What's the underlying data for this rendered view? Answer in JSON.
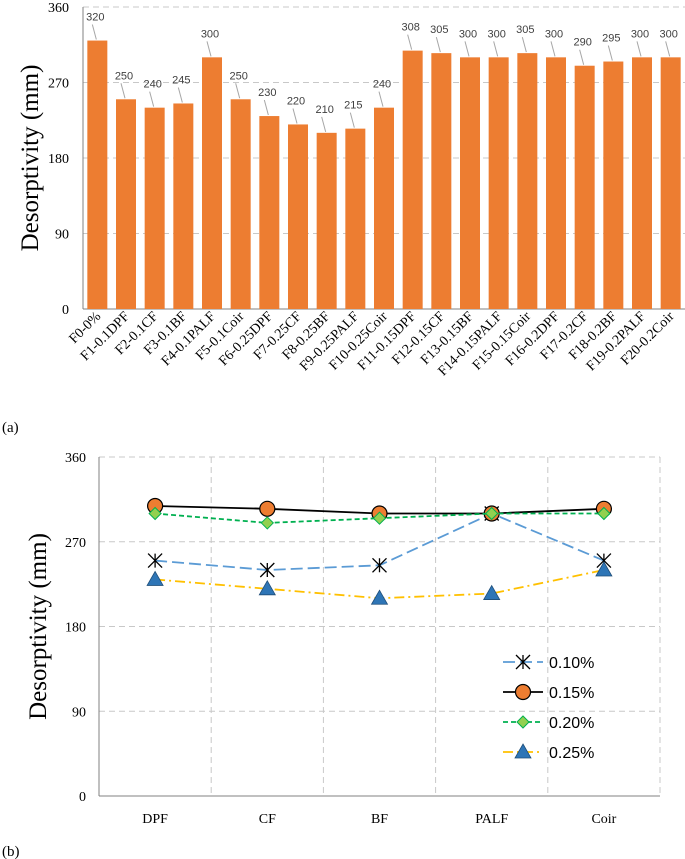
{
  "chart_data": [
    {
      "panel": "(a)",
      "type": "bar",
      "ylabel": "Desorptivity (mm)",
      "ylim": [
        0,
        360
      ],
      "yticks": [
        0,
        90,
        180,
        270,
        360
      ],
      "grid": "horizontal dashed",
      "bar_color": "#ED7D31",
      "categories": [
        "F0-0%",
        "F1-0.1DPF",
        "F2-0.1CF",
        "F3-0.1BF",
        "F4-0.1PALF",
        "F5-0.1Coir",
        "F6-0.25DPF",
        "F7-0.25CF",
        "F8-0.25BF",
        "F9-0.25PALF",
        "F10-0.25Coir",
        "F11-0.15DPF",
        "F12-0.15CF",
        "F13-0.15BF",
        "F14-0.15PALF",
        "F15-0.15Coir",
        "F16-0.2DPF",
        "F17-0.2CF",
        "F18-0.2BF",
        "F19-0.2PALF",
        "F20-0.2Coir"
      ],
      "values": [
        320,
        250,
        240,
        245,
        300,
        250,
        230,
        220,
        210,
        215,
        240,
        308,
        305,
        300,
        300,
        305,
        300,
        290,
        295,
        300,
        300
      ]
    },
    {
      "panel": "(b)",
      "type": "line",
      "ylabel": "Desorptivity (mm)",
      "ylim": [
        0,
        360
      ],
      "yticks": [
        0,
        90,
        180,
        270,
        360
      ],
      "grid": "dashed both",
      "legend_position": "lower-right",
      "categories": [
        "DPF",
        "CF",
        "BF",
        "PALF",
        "Coir"
      ],
      "series": [
        {
          "name": "0.10%",
          "values": [
            250,
            240,
            245,
            300,
            250
          ],
          "color": "#5B9BD5",
          "marker": "asterisk",
          "dash": "long-dash"
        },
        {
          "name": "0.15%",
          "values": [
            308,
            305,
            300,
            300,
            305
          ],
          "color": "#000000",
          "marker": "circle",
          "marker_fill": "#ED7D31",
          "dash": "solid"
        },
        {
          "name": "0.20%",
          "values": [
            300,
            290,
            295,
            300,
            300
          ],
          "color": "#00B050",
          "marker": "diamond",
          "marker_fill": "#92D050",
          "dash": "dash"
        },
        {
          "name": "0.25%",
          "values": [
            230,
            220,
            210,
            215,
            240
          ],
          "color": "#FFC000",
          "marker": "triangle",
          "marker_fill": "#2E75B6",
          "dash": "dash-dot"
        }
      ]
    }
  ]
}
